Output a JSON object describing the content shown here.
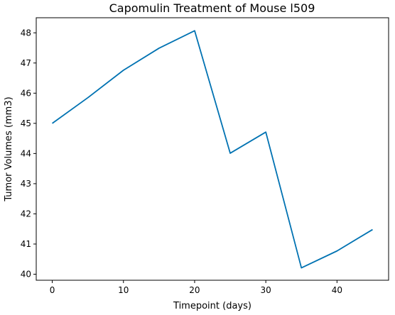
{
  "chart_data": {
    "type": "line",
    "title": "Capomulin Treatment of Mouse l509",
    "xlabel": "Timepoint (days)",
    "ylabel": "Tumor Volumes (mm3)",
    "xlim": [
      -2.25,
      47.25
    ],
    "ylim": [
      39.8,
      48.5
    ],
    "xticks": [
      0,
      10,
      20,
      30,
      40
    ],
    "yticks": [
      40,
      41,
      42,
      43,
      44,
      45,
      46,
      47,
      48
    ],
    "grid": false,
    "series": [
      {
        "color": "#0072b2",
        "x": [
          0,
          5,
          10,
          15,
          20,
          25,
          30,
          35,
          40,
          45
        ],
        "y": [
          45.0,
          45.85,
          46.76,
          47.49,
          48.07,
          44.01,
          44.71,
          40.21,
          40.77,
          41.48
        ]
      }
    ]
  }
}
